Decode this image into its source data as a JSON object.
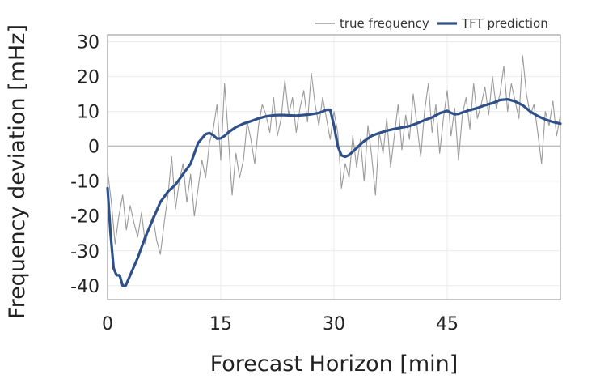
{
  "chart_data": {
    "type": "line",
    "title": "",
    "xlabel": "Forecast Horizon [min]",
    "ylabel": "Frequency deviation [mHz]",
    "xlim": [
      0,
      60
    ],
    "ylim": [
      -44,
      32
    ],
    "xticks": [
      0,
      15,
      30,
      45
    ],
    "yticks": [
      30,
      20,
      10,
      0,
      -10,
      -20,
      -30,
      -40
    ],
    "grid": true,
    "legend_position": "top-right",
    "series": [
      {
        "name": "true frequency",
        "color": "#9a9a9a",
        "x": [
          0,
          0.5,
          1,
          1.5,
          2,
          2.5,
          3,
          3.5,
          4,
          4.5,
          5,
          5.5,
          6,
          6.5,
          7,
          7.5,
          8,
          8.5,
          9,
          9.5,
          10,
          10.5,
          11,
          11.5,
          12,
          12.5,
          13,
          13.5,
          14,
          14.5,
          15,
          15.5,
          16,
          16.5,
          17,
          17.5,
          18,
          18.5,
          19,
          19.5,
          20,
          20.5,
          21,
          21.5,
          22,
          22.5,
          23,
          23.5,
          24,
          24.5,
          25,
          25.5,
          26,
          26.5,
          27,
          27.5,
          28,
          28.5,
          29,
          29.5,
          30,
          30.5,
          31,
          31.5,
          32,
          32.5,
          33,
          33.5,
          34,
          34.5,
          35,
          35.5,
          36,
          36.5,
          37,
          37.5,
          38,
          38.5,
          39,
          39.5,
          40,
          40.5,
          41,
          41.5,
          42,
          42.5,
          43,
          43.5,
          44,
          44.5,
          45,
          45.5,
          46,
          46.5,
          47,
          47.5,
          48,
          48.5,
          49,
          49.5,
          50,
          50.5,
          51,
          51.5,
          52,
          52.5,
          53,
          53.5,
          54,
          54.5,
          55,
          55.5,
          56,
          56.5,
          57,
          57.5,
          58,
          58.5,
          59,
          59.5,
          60
        ],
        "values": [
          -7,
          -16,
          -28,
          -20,
          -14,
          -24,
          -17,
          -22,
          -26,
          -19,
          -28,
          -23,
          -20,
          -27,
          -31,
          -22,
          -14,
          -3,
          -18,
          -10,
          -5,
          -16,
          -8,
          -20,
          -12,
          -4,
          -9,
          1,
          5,
          12,
          -4,
          18,
          3,
          -14,
          -2,
          -9,
          -4,
          7,
          2,
          -5,
          6,
          12,
          9,
          4,
          14,
          3,
          8,
          19,
          9,
          14,
          4,
          11,
          16,
          7,
          21,
          12,
          6,
          14,
          8,
          2,
          10,
          4,
          -12,
          -5,
          -9,
          3,
          -6,
          2,
          -10,
          6,
          -3,
          -14,
          4,
          -2,
          8,
          -6,
          3,
          12,
          -1,
          9,
          2,
          15,
          6,
          -3,
          10,
          18,
          4,
          12,
          -2,
          8,
          16,
          3,
          11,
          -4,
          9,
          14,
          5,
          18,
          8,
          12,
          17,
          9,
          20,
          11,
          15,
          23,
          10,
          18,
          13,
          8,
          26,
          15,
          9,
          12,
          4,
          -5,
          10,
          6,
          13,
          3,
          9
        ]
      },
      {
        "name": "TFT prediction",
        "color": "#2e4f87",
        "x": [
          0,
          0.4,
          0.8,
          1.2,
          1.6,
          2.0,
          2.4,
          3,
          4,
          5,
          6,
          7,
          8,
          9,
          10,
          11,
          12,
          13,
          13.5,
          14,
          14.5,
          15,
          15.5,
          16,
          17,
          18,
          19,
          20,
          21,
          22,
          23,
          24,
          25,
          26,
          27,
          28,
          28.5,
          29,
          29.5,
          30,
          30.5,
          31,
          31.5,
          32,
          33,
          34,
          35,
          36,
          37,
          38,
          39,
          40,
          41,
          42,
          43,
          44,
          45,
          45.5,
          46,
          46.5,
          47,
          48,
          49,
          50,
          51,
          52,
          53,
          54,
          55,
          56,
          57,
          58,
          59,
          60
        ],
        "values": [
          -12,
          -25,
          -35,
          -37,
          -37,
          -40,
          -40,
          -37,
          -32,
          -26,
          -21,
          -16,
          -13,
          -11,
          -8,
          -5,
          1,
          3.5,
          3.8,
          3.2,
          2.2,
          2.3,
          3,
          4,
          5.5,
          6.5,
          7.2,
          8,
          8.6,
          8.9,
          9,
          8.9,
          8.8,
          9,
          9.2,
          9.6,
          10,
          10.5,
          10.5,
          6,
          0,
          -2.6,
          -3,
          -2.5,
          -0.5,
          1.5,
          3,
          3.8,
          4.5,
          5,
          5.4,
          5.8,
          6.6,
          7.5,
          8.3,
          9.5,
          10.2,
          9.6,
          9.2,
          9.3,
          9.7,
          10.4,
          11,
          11.8,
          12.4,
          13.3,
          13.5,
          12.9,
          11.8,
          10,
          8.7,
          7.7,
          7,
          6.5
        ]
      }
    ]
  }
}
